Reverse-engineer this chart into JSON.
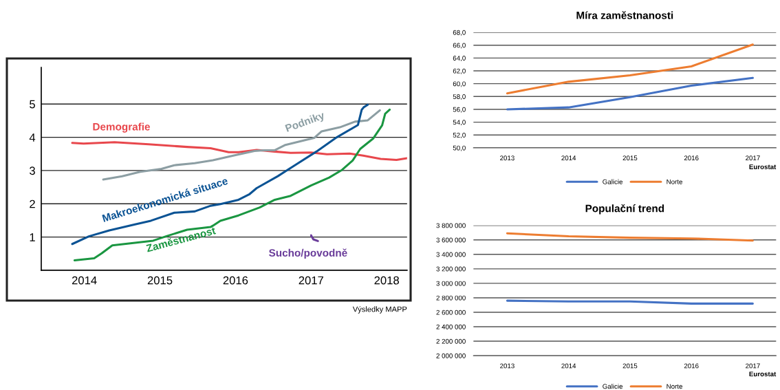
{
  "chart_data": [
    {
      "type": "line",
      "ylim": [
        0,
        6.1
      ],
      "yticks": [
        1,
        2,
        3,
        4,
        5
      ],
      "xlim": [
        2013.43,
        2018.27
      ],
      "xticks": [
        2014,
        2015,
        2016,
        2017,
        2018
      ],
      "grid": "y",
      "legend": false,
      "series": [
        {
          "name": "Demografie",
          "color": "#e8474c",
          "x": [
            2013.84,
            2013.99,
            2014.4,
            2014.85,
            2015.36,
            2015.67,
            2015.91,
            2016.04,
            2016.28,
            2016.52,
            2016.73,
            2017.0,
            2017.21,
            2017.51,
            2017.69,
            2017.92,
            2018.13,
            2018.27
          ],
          "values": [
            3.83,
            3.81,
            3.85,
            3.79,
            3.71,
            3.67,
            3.55,
            3.55,
            3.62,
            3.57,
            3.53,
            3.54,
            3.49,
            3.51,
            3.45,
            3.35,
            3.32,
            3.37
          ]
        },
        {
          "name": "Podniky",
          "color": "#8c9ea3",
          "x": [
            2014.25,
            2014.5,
            2014.74,
            2015.02,
            2015.19,
            2015.46,
            2015.7,
            2015.97,
            2016.25,
            2016.38,
            2016.52,
            2016.66,
            2017.04,
            2017.14,
            2017.38,
            2017.58,
            2017.75,
            2017.91
          ],
          "values": [
            2.73,
            2.83,
            2.96,
            3.05,
            3.16,
            3.22,
            3.31,
            3.45,
            3.59,
            3.61,
            3.61,
            3.77,
            3.98,
            4.18,
            4.3,
            4.47,
            4.51,
            4.81
          ]
        },
        {
          "name": "Makroekonomická situace",
          "color": "#0b5394",
          "x": [
            2013.84,
            2014.06,
            2014.33,
            2014.67,
            2014.88,
            2015.19,
            2015.46,
            2015.67,
            2015.8,
            2016.04,
            2016.18,
            2016.28,
            2016.56,
            2016.8,
            2017.07,
            2017.34,
            2017.62,
            2017.67,
            2017.7,
            2017.75
          ],
          "values": [
            0.79,
            1.02,
            1.2,
            1.38,
            1.49,
            1.73,
            1.77,
            1.94,
            1.99,
            2.12,
            2.28,
            2.47,
            2.83,
            3.18,
            3.57,
            4.0,
            4.37,
            4.83,
            4.91,
            4.98
          ]
        },
        {
          "name": "Zaměstnanost",
          "color": "#1a9641",
          "x": [
            2013.87,
            2014.13,
            2014.23,
            2014.37,
            2014.61,
            2014.91,
            2015.08,
            2015.36,
            2015.67,
            2015.7,
            2015.8,
            2016.04,
            2016.32,
            2016.52,
            2016.73,
            2017.0,
            2017.24,
            2017.41,
            2017.55,
            2017.65,
            2017.82,
            2017.94,
            2017.98,
            2018.04
          ],
          "values": [
            0.3,
            0.36,
            0.51,
            0.75,
            0.81,
            0.89,
            1.02,
            1.22,
            1.3,
            1.34,
            1.49,
            1.65,
            1.89,
            2.12,
            2.24,
            2.55,
            2.79,
            3.02,
            3.3,
            3.65,
            3.96,
            4.36,
            4.71,
            4.83
          ]
        },
        {
          "name": "Sucho/povodně",
          "color": "#6a3d9a",
          "x": [
            2017.0,
            2017.03,
            2017.09
          ],
          "values": [
            1.05,
            0.93,
            0.88
          ]
        }
      ],
      "annotations": [
        "Výsledky MAPP"
      ]
    },
    {
      "type": "line",
      "title": "Míra zaměstnanosti",
      "categories": [
        "2013",
        "2014",
        "2015",
        "2016",
        "2017"
      ],
      "ylim": [
        50,
        68
      ],
      "yticks": [
        {
          "value": 50,
          "label": "50,0"
        },
        {
          "value": 52,
          "label": "52,0"
        },
        {
          "value": 54,
          "label": "54,0"
        },
        {
          "value": 56,
          "label": "56,0"
        },
        {
          "value": 58,
          "label": "58,0"
        },
        {
          "value": 60,
          "label": "60,0"
        },
        {
          "value": 62,
          "label": "62,0"
        },
        {
          "value": 64,
          "label": "64,0"
        },
        {
          "value": 66,
          "label": "66,0"
        },
        {
          "value": 68,
          "label": "68,0"
        }
      ],
      "grid": "y",
      "legend": "bottom",
      "series": [
        {
          "name": "Galicie",
          "color": "#4472c4",
          "values": [
            56.0,
            56.3,
            57.9,
            59.7,
            60.9
          ]
        },
        {
          "name": "Norte",
          "color": "#ed7d31",
          "values": [
            58.5,
            60.3,
            61.3,
            62.7,
            66.1
          ]
        }
      ],
      "annotations": [
        "Eurostat"
      ]
    },
    {
      "type": "line",
      "title": "Populační trend",
      "categories": [
        "2013",
        "2014",
        "2015",
        "2016",
        "2017"
      ],
      "ylim": [
        2000000,
        3800000
      ],
      "yticks": [
        {
          "value": 2000000,
          "label": "2 000 000"
        },
        {
          "value": 2200000,
          "label": "2 200 000"
        },
        {
          "value": 2400000,
          "label": "2 400 000"
        },
        {
          "value": 2600000,
          "label": "2 600 000"
        },
        {
          "value": 2800000,
          "label": "2 800 000"
        },
        {
          "value": 3000000,
          "label": "3 000 000"
        },
        {
          "value": 3200000,
          "label": "3 200 000"
        },
        {
          "value": 3400000,
          "label": "3 400 000"
        },
        {
          "value": 3600000,
          "label": "3 600 000"
        },
        {
          "value": 3800000,
          "label": "3 800 000"
        }
      ],
      "grid": "y",
      "legend": "bottom",
      "series": [
        {
          "name": "Galicie",
          "color": "#4472c4",
          "values": [
            2760000,
            2750000,
            2750000,
            2720000,
            2720000
          ]
        },
        {
          "name": "Norte",
          "color": "#ed7d31",
          "values": [
            3690000,
            3650000,
            3630000,
            3620000,
            3590000
          ]
        }
      ],
      "annotations": [
        "Eurostat"
      ]
    }
  ]
}
